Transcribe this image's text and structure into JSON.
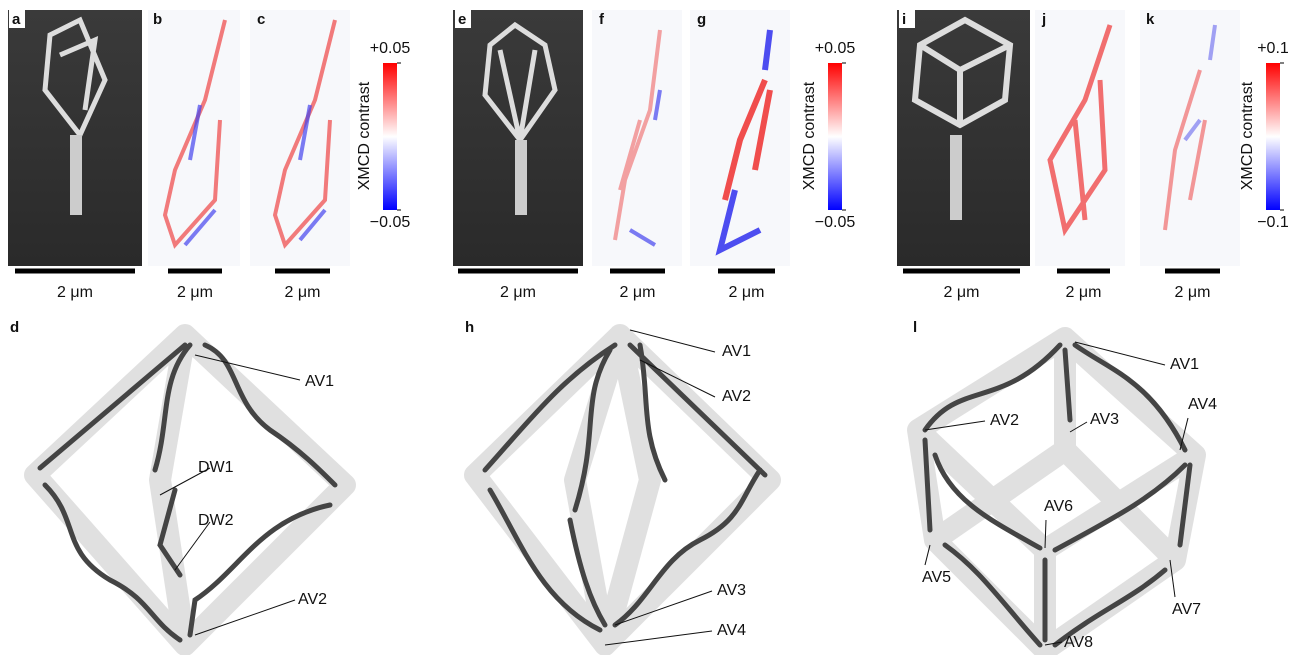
{
  "panels": [
    {
      "letter": "a",
      "scale_bar": "2 μm"
    },
    {
      "letter": "b",
      "scale_bar": "2 μm"
    },
    {
      "letter": "c",
      "scale_bar": "2 μm"
    },
    {
      "letter": "e",
      "scale_bar": "2 μm"
    },
    {
      "letter": "f",
      "scale_bar": "2 μm"
    },
    {
      "letter": "g",
      "scale_bar": "2 μm"
    },
    {
      "letter": "i",
      "scale_bar": "2 μm"
    },
    {
      "letter": "j",
      "scale_bar": "2 μm"
    },
    {
      "letter": "k",
      "scale_bar": "2 μm"
    }
  ],
  "colorbars": [
    {
      "label": "XMCD contrast",
      "lim": [
        -0.05,
        0.05
      ],
      "ticks": [
        {
          "value": 0.05,
          "label": "+0.05"
        },
        {
          "value": -0.05,
          "label": "−0.05"
        }
      ]
    },
    {
      "label": "XMCD contrast",
      "lim": [
        -0.05,
        0.05
      ],
      "ticks": [
        {
          "value": 0.05,
          "label": "+0.05"
        },
        {
          "value": -0.05,
          "label": "−0.05"
        }
      ]
    },
    {
      "label": "XMCD contrast",
      "lim": [
        -0.1,
        0.1
      ],
      "ticks": [
        {
          "value": 0.1,
          "label": "+0.1"
        },
        {
          "value": -0.1,
          "label": "−0.1"
        }
      ]
    }
  ],
  "diagrams": [
    {
      "letter": "d",
      "labels": [
        "AV1",
        "DW1",
        "DW2",
        "AV2"
      ]
    },
    {
      "letter": "h",
      "labels": [
        "AV1",
        "AV2",
        "AV3",
        "AV4"
      ]
    },
    {
      "letter": "l",
      "labels": [
        "AV1",
        "AV2",
        "AV3",
        "AV4",
        "AV6",
        "AV5",
        "AV7",
        "AV8"
      ]
    }
  ]
}
